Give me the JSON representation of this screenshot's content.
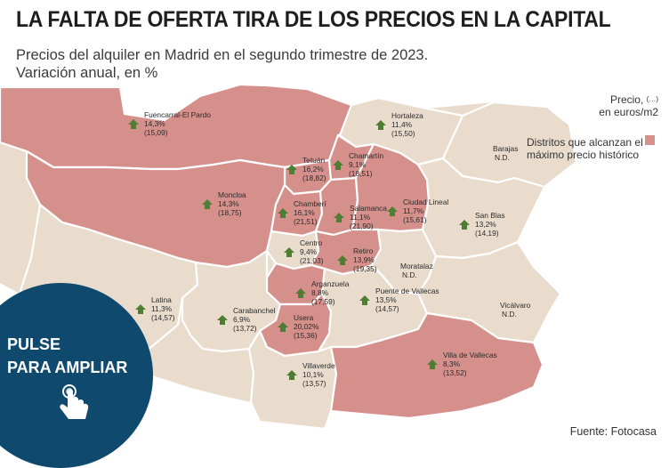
{
  "title": "LA FALTA DE OFERTA TIRA DE LOS PRECIOS EN LA CAPITAL",
  "subtitle": {
    "line1": "Precios del alquiler en Madrid en el segundo trimestre de 2023.",
    "line2": "Variación anual, en %"
  },
  "legend": {
    "price_line1": "Precio,",
    "price_dots": "(…)",
    "price_line2": "en euros/m2",
    "max_label": "Distritos que alcanzan el máximo precio histórico"
  },
  "colors": {
    "historic_max": "#d5908c",
    "other": "#e9dccd",
    "border": "#ffffff",
    "arrow": "#4f7d33",
    "cta_circle": "#0f4a6e"
  },
  "districts": [
    {
      "name": "Fuencarral-El Pardo",
      "change": "14,3%",
      "price": "(15,09)",
      "historic_max": true
    },
    {
      "name": "Hortaleza",
      "change": "11,4%",
      "price": "(15,50)",
      "historic_max": false
    },
    {
      "name": "Barajas",
      "change": "N.D.",
      "price": "",
      "historic_max": false
    },
    {
      "name": "Tetuán",
      "change": "16,2%",
      "price": "(18,82)",
      "historic_max": true
    },
    {
      "name": "Chamartín",
      "change": "9,1%",
      "price": "(18,51)",
      "historic_max": true
    },
    {
      "name": "Moncloa",
      "change": "14,3%",
      "price": "(18,75)",
      "historic_max": true
    },
    {
      "name": "Chamberí",
      "change": "16,1%",
      "price": "(21,51)",
      "historic_max": true
    },
    {
      "name": "Salamanca",
      "change": "11,1%",
      "price": "(21,90)",
      "historic_max": true
    },
    {
      "name": "Ciudad Lineal",
      "change": "11,7%",
      "price": "(15,61)",
      "historic_max": true
    },
    {
      "name": "San Blas",
      "change": "13,2%",
      "price": "(14,19)",
      "historic_max": false
    },
    {
      "name": "Centro",
      "change": "9,4%",
      "price": "(21,03)",
      "historic_max": false
    },
    {
      "name": "Retiro",
      "change": "13,9%",
      "price": "(19,35)",
      "historic_max": true
    },
    {
      "name": "Moratalaz",
      "change": "N.D.",
      "price": "",
      "historic_max": false
    },
    {
      "name": "Arganzuela",
      "change": "8,8%",
      "price": "(17,59)",
      "historic_max": true
    },
    {
      "name": "Latina",
      "change": "11,3%",
      "price": "(14,57)",
      "historic_max": false
    },
    {
      "name": "Carabanchel",
      "change": "6,9%",
      "price": "(13,72)",
      "historic_max": false
    },
    {
      "name": "Usera",
      "change": "20,02%",
      "price": "(15,36)",
      "historic_max": true
    },
    {
      "name": "Puente de Vallecas",
      "change": "13,5%",
      "price": "(14,57)",
      "historic_max": false
    },
    {
      "name": "Vicálvaro",
      "change": "N.D.",
      "price": "",
      "historic_max": false
    },
    {
      "name": "Villaverde",
      "change": "10,1%",
      "price": "(13,57)",
      "historic_max": false
    },
    {
      "name": "Villa de Vallecas",
      "change": "8,3%",
      "price": "(13,52)",
      "historic_max": true
    }
  ],
  "cta": {
    "line1": "PULSE",
    "line2": "PARA AMPLIAR",
    "icon": "tap-hand-icon"
  },
  "source": "Fuente: Fotocasa"
}
